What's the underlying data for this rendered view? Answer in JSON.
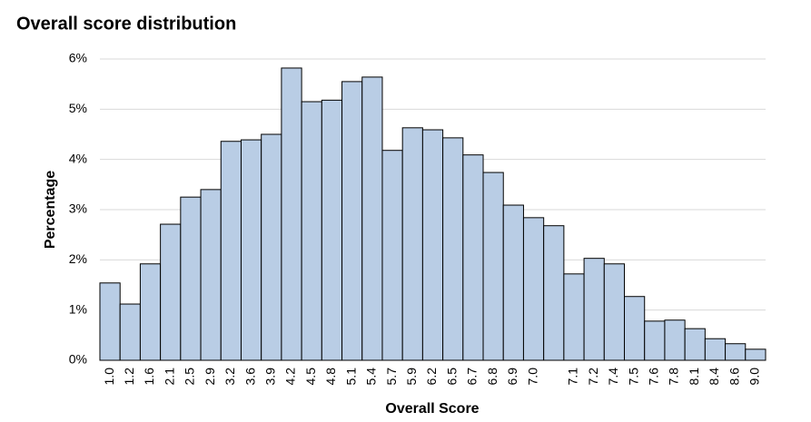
{
  "chart_data": {
    "type": "bar",
    "title": "Overall score distribution",
    "x_label": "Overall Score",
    "y_label": "Percentage",
    "categories": [
      "1.0",
      "1.2",
      "1.6",
      "2.1",
      "2.5",
      "2.9",
      "3.2",
      "3.6",
      "3.9",
      "4.2",
      "4.5",
      "4.8",
      "5.1",
      "5.4",
      "5.7",
      "5.9",
      "6.2",
      "6.5",
      "6.7",
      "6.8",
      "6.9",
      "7.0",
      null,
      "7.1",
      "7.2",
      "7.4",
      "7.5",
      "7.6",
      "7.8",
      "8.1",
      "8.4",
      "8.6",
      "9.0"
    ],
    "values": [
      1.54,
      1.12,
      1.92,
      2.71,
      3.25,
      3.4,
      4.36,
      4.39,
      4.5,
      5.82,
      5.15,
      5.18,
      5.55,
      5.64,
      4.18,
      4.63,
      4.59,
      4.43,
      4.09,
      3.74,
      3.09,
      2.84,
      2.68,
      1.72,
      2.03,
      1.92,
      1.27,
      0.78,
      0.8,
      0.63,
      0.43,
      0.33,
      0.22
    ],
    "color": "#b9cde5",
    "ylim": [
      0,
      6
    ],
    "yticks": [
      {
        "value": 0,
        "label": "0%"
      },
      {
        "value": 1,
        "label": "1%"
      },
      {
        "value": 2,
        "label": "2%"
      },
      {
        "value": 3,
        "label": "3%"
      },
      {
        "value": 4,
        "label": "4%"
      },
      {
        "value": 5,
        "label": "5%"
      },
      {
        "value": 6,
        "label": "6%"
      }
    ],
    "grid": true
  }
}
